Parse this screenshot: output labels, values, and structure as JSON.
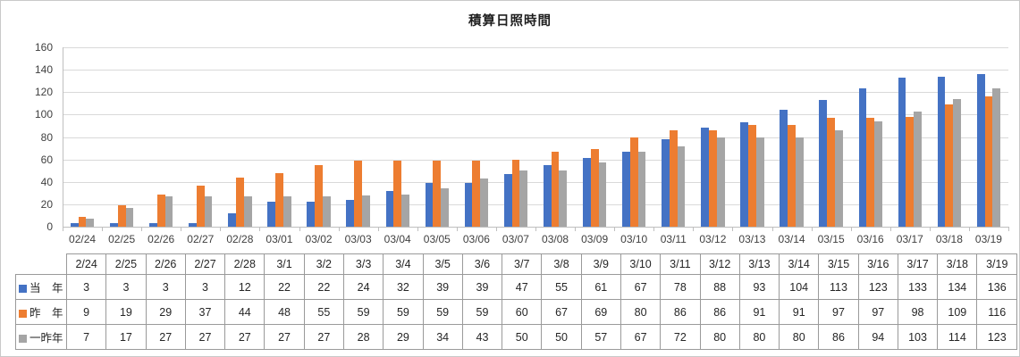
{
  "chart_data": {
    "type": "bar",
    "title": "積算日照時間",
    "categories": [
      "02/24",
      "02/25",
      "02/26",
      "02/27",
      "02/28",
      "03/01",
      "03/02",
      "03/03",
      "03/04",
      "03/05",
      "03/06",
      "03/07",
      "03/08",
      "03/09",
      "03/10",
      "03/11",
      "03/12",
      "03/13",
      "03/14",
      "03/15",
      "03/16",
      "03/17",
      "03/18",
      "03/19"
    ],
    "series": [
      {
        "name": "当　年",
        "color": "#4472C4",
        "values": [
          3,
          3,
          3,
          3,
          12,
          22,
          22,
          24,
          32,
          39,
          39,
          47,
          55,
          61,
          67,
          78,
          88,
          93,
          104,
          113,
          123,
          133,
          134,
          136
        ]
      },
      {
        "name": "昨　年",
        "color": "#ED7D31",
        "values": [
          9,
          19,
          29,
          37,
          44,
          48,
          55,
          59,
          59,
          59,
          59,
          60,
          67,
          69,
          80,
          86,
          86,
          91,
          91,
          97,
          97,
          98,
          109,
          116
        ]
      },
      {
        "name": "一昨年",
        "color": "#A5A5A5",
        "values": [
          7,
          17,
          27,
          27,
          27,
          27,
          27,
          28,
          29,
          34,
          43,
          50,
          50,
          57,
          67,
          72,
          80,
          80,
          80,
          86,
          94,
          103,
          114,
          123
        ]
      }
    ],
    "xlabel": "",
    "ylabel": "",
    "ylim": [
      0,
      160
    ],
    "ytick_step": 20,
    "grid": true,
    "legend_position": "table-left",
    "colors": {
      "gridline": "#d9d9d9",
      "axis_line": "#bfbfbf",
      "table_border": "#9a9a9a"
    }
  },
  "table": {
    "col_headers": [
      "2/24",
      "2/25",
      "2/26",
      "2/27",
      "2/28",
      "3/1",
      "3/2",
      "3/3",
      "3/4",
      "3/5",
      "3/6",
      "3/7",
      "3/8",
      "3/9",
      "3/10",
      "3/11",
      "3/12",
      "3/13",
      "3/14",
      "3/15",
      "3/16",
      "3/17",
      "3/18",
      "3/19"
    ],
    "rows": [
      {
        "label": "当　年",
        "swatch": "#4472C4",
        "values": [
          3,
          3,
          3,
          3,
          12,
          22,
          22,
          24,
          32,
          39,
          39,
          47,
          55,
          61,
          67,
          78,
          88,
          93,
          104,
          113,
          123,
          133,
          134,
          136
        ]
      },
      {
        "label": "昨　年",
        "swatch": "#ED7D31",
        "values": [
          9,
          19,
          29,
          37,
          44,
          48,
          55,
          59,
          59,
          59,
          59,
          60,
          67,
          69,
          80,
          86,
          86,
          91,
          91,
          97,
          97,
          98,
          109,
          116
        ]
      },
      {
        "label": "一昨年",
        "swatch": "#A5A5A5",
        "values": [
          7,
          17,
          27,
          27,
          27,
          27,
          27,
          28,
          29,
          34,
          43,
          50,
          50,
          57,
          67,
          72,
          80,
          80,
          80,
          86,
          94,
          103,
          114,
          123
        ]
      }
    ]
  }
}
